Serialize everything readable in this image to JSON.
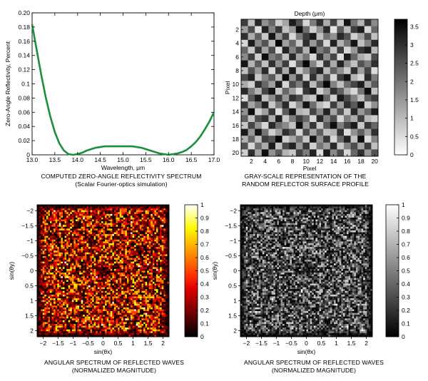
{
  "chart_data": [
    {
      "type": "line",
      "xlabel": "Wavelength, μm",
      "ylabel": "Zero-Angle Reflectivity, Percent",
      "xlim": [
        13.0,
        17.0
      ],
      "ylim": [
        0,
        0.2
      ],
      "xticks": [
        "13.0",
        "13.5",
        "14.0",
        "14.5",
        "15.0",
        "15.5",
        "16.0",
        "16.5",
        "17.0"
      ],
      "yticks": [
        "0",
        "0.02",
        "0.04",
        "0.06",
        "0.08",
        "0.1",
        "0.12",
        "0.14",
        "0.16",
        "0.18",
        "0.20"
      ],
      "grid": false,
      "color": "#1a8f3c",
      "series": [
        {
          "x": [
            13.0,
            13.1,
            13.2,
            13.3,
            13.4,
            13.5,
            13.6,
            13.7,
            13.8,
            13.9,
            14.0,
            14.1,
            14.2,
            14.3,
            14.4,
            14.5,
            14.6,
            14.7,
            14.8,
            14.9,
            15.0,
            15.1,
            15.2,
            15.3,
            15.4,
            15.5,
            15.6,
            15.7,
            15.8,
            15.9,
            16.0,
            16.1,
            16.2,
            16.3,
            16.4,
            16.5,
            16.6,
            16.7,
            16.8,
            16.9,
            17.0
          ],
          "y": [
            0.184,
            0.148,
            0.113,
            0.081,
            0.054,
            0.032,
            0.016,
            0.006,
            0.001,
            0.0,
            0.001,
            0.003,
            0.006,
            0.008,
            0.01,
            0.011,
            0.012,
            0.012,
            0.012,
            0.012,
            0.012,
            0.012,
            0.012,
            0.011,
            0.01,
            0.008,
            0.006,
            0.004,
            0.002,
            0.001,
            0.0,
            0.001,
            0.002,
            0.004,
            0.007,
            0.012,
            0.018,
            0.026,
            0.036,
            0.047,
            0.06
          ]
        }
      ],
      "caption": [
        "COMPUTED ZERO-ANGLE REFLECTIVITY SPECTRUM",
        "(Scalar Fourier-optics simulation)"
      ]
    },
    {
      "type": "heatmap",
      "title": "Depth (μm)",
      "xlabel": "Pixel",
      "ylabel": "Pixel",
      "xticks": [
        "2",
        "4",
        "6",
        "8",
        "10",
        "12",
        "14",
        "16",
        "18",
        "20"
      ],
      "yticks": [
        "2",
        "4",
        "6",
        "8",
        "10",
        "12",
        "14",
        "16",
        "18",
        "20"
      ],
      "rows": 20,
      "cols": 20,
      "colormap": "gray",
      "colorbar_range": [
        0,
        3.7
      ],
      "colorbar_ticks": [
        "0",
        "0.5",
        "1",
        "1.5",
        "2",
        "2.5",
        "3",
        "3.5"
      ],
      "values": [
        [
          2.8,
          0.9,
          3.1,
          1.6,
          2.2,
          0.7,
          1.3,
          3.3,
          2.5,
          0.6,
          1.9,
          3.0,
          1.2,
          2.7,
          0.8,
          3.4,
          2.0,
          1.1,
          2.9,
          1.7
        ],
        [
          1.4,
          2.6,
          0.5,
          3.2,
          1.8,
          2.9,
          0.9,
          1.5,
          3.5,
          2.1,
          0.7,
          1.6,
          3.1,
          0.4,
          2.4,
          1.0,
          2.8,
          3.3,
          0.6,
          2.2
        ],
        [
          3.0,
          1.2,
          2.3,
          0.8,
          3.4,
          1.5,
          2.7,
          0.6,
          1.9,
          2.8,
          3.3,
          0.9,
          2.0,
          1.6,
          3.1,
          2.5,
          0.7,
          1.4,
          2.6,
          0.9
        ],
        [
          0.6,
          3.3,
          1.7,
          2.5,
          1.0,
          3.6,
          1.4,
          2.2,
          0.8,
          3.0,
          1.5,
          2.6,
          0.6,
          3.2,
          1.1,
          2.0,
          3.4,
          0.9,
          1.8,
          3.1
        ],
        [
          2.2,
          0.8,
          2.9,
          1.3,
          2.6,
          0.5,
          3.2,
          1.8,
          2.7,
          1.1,
          3.5,
          1.9,
          2.4,
          0.9,
          2.8,
          0.6,
          1.5,
          2.9,
          3.3,
          1.0
        ],
        [
          1.7,
          2.8,
          0.7,
          3.5,
          1.9,
          2.3,
          0.9,
          3.1,
          1.3,
          2.0,
          0.6,
          3.0,
          1.6,
          2.7,
          0.5,
          3.3,
          2.2,
          1.2,
          0.8,
          2.6
        ],
        [
          3.4,
          1.1,
          2.4,
          0.9,
          3.0,
          1.6,
          2.8,
          0.5,
          2.3,
          3.6,
          1.8,
          0.7,
          2.9,
          1.2,
          3.2,
          1.7,
          0.9,
          2.5,
          1.9,
          3.0
        ],
        [
          0.9,
          2.5,
          1.5,
          3.1,
          0.6,
          2.9,
          1.2,
          3.3,
          0.8,
          1.7,
          2.6,
          3.2,
          1.0,
          2.3,
          1.6,
          0.8,
          3.0,
          1.4,
          2.7,
          0.5
        ],
        [
          2.6,
          3.2,
          0.8,
          1.8,
          2.4,
          1.0,
          3.5,
          1.6,
          2.9,
          0.7,
          3.0,
          1.3,
          2.5,
          0.6,
          2.8,
          3.4,
          1.1,
          0.6,
          3.1,
          1.9
        ],
        [
          1.2,
          0.7,
          3.0,
          2.2,
          1.4,
          3.3,
          0.6,
          2.6,
          1.9,
          3.1,
          1.0,
          2.4,
          3.6,
          1.8,
          0.9,
          2.1,
          2.7,
          3.3,
          1.3,
          2.4
        ],
        [
          3.1,
          1.9,
          1.1,
          2.7,
          3.4,
          0.8,
          2.2,
          1.4,
          0.5,
          2.9,
          3.3,
          0.7,
          1.5,
          3.0,
          2.3,
          1.2,
          0.6,
          2.0,
          3.5,
          0.9
        ],
        [
          0.5,
          2.4,
          3.3,
          0.9,
          1.7,
          2.8,
          1.5,
          3.0,
          2.6,
          1.1,
          0.8,
          3.5,
          2.2,
          0.7,
          3.3,
          2.6,
          1.8,
          0.9,
          2.3,
          2.8
        ],
        [
          2.9,
          1.3,
          2.0,
          3.2,
          0.8,
          1.9,
          3.1,
          0.6,
          1.6,
          3.4,
          2.1,
          1.0,
          0.6,
          2.8,
          1.4,
          3.0,
          2.4,
          3.4,
          0.7,
          1.6
        ],
        [
          1.6,
          3.5,
          0.7,
          1.4,
          2.9,
          0.5,
          2.4,
          3.4,
          1.1,
          0.9,
          2.7,
          1.7,
          3.2,
          1.3,
          2.5,
          0.8,
          3.1,
          1.5,
          2.2,
          3.3
        ],
        [
          2.3,
          0.9,
          2.6,
          3.0,
          1.2,
          3.3,
          0.8,
          1.9,
          2.8,
          2.2,
          0.6,
          3.1,
          1.8,
          2.6,
          0.6,
          1.9,
          1.2,
          2.8,
          1.0,
          0.7
        ],
        [
          0.8,
          2.7,
          1.6,
          0.6,
          3.1,
          2.1,
          1.7,
          0.9,
          3.5,
          1.5,
          2.9,
          0.8,
          2.4,
          3.5,
          1.9,
          2.7,
          3.3,
          0.8,
          2.9,
          2.2
        ],
        [
          3.3,
          1.5,
          3.4,
          2.0,
          0.7,
          1.4,
          3.0,
          2.5,
          0.6,
          2.6,
          1.3,
          2.3,
          0.9,
          1.1,
          3.0,
          0.5,
          1.6,
          2.3,
          1.4,
          3.0
        ],
        [
          1.1,
          2.2,
          0.9,
          2.8,
          2.5,
          3.6,
          0.7,
          1.3,
          2.1,
          0.8,
          3.4,
          1.6,
          2.9,
          0.6,
          2.2,
          3.2,
          0.9,
          3.5,
          0.5,
          1.8
        ],
        [
          2.5,
          0.6,
          2.1,
          1.2,
          3.3,
          0.9,
          2.6,
          3.2,
          1.5,
          2.9,
          0.7,
          2.0,
          1.4,
          3.1,
          0.8,
          1.8,
          2.6,
          1.3,
          2.8,
          0.9
        ],
        [
          0.7,
          3.0,
          1.3,
          3.5,
          1.6,
          2.4,
          1.1,
          0.8,
          2.7,
          1.9,
          3.2,
          0.5,
          3.3,
          1.7,
          2.6,
          0.6,
          2.2,
          3.0,
          1.5,
          2.5
        ]
      ],
      "caption": [
        "GRAY-SCALE REPRESENTATION OF THE",
        "RANDOM REFLECTOR SURFACE PROFILE"
      ]
    },
    {
      "type": "heatmap",
      "xlabel": "sin(θx)",
      "ylabel": "sin(θy)",
      "xticks": [
        "−2",
        "−1.5",
        "−1",
        "−0.5",
        "0",
        "0.5",
        "1",
        "1.5",
        "2"
      ],
      "yticks": [
        "−2",
        "−1.5",
        "−1",
        "−0.5",
        "0",
        "0.5",
        "1",
        "1.5",
        "2"
      ],
      "xlim": [
        -2.2,
        2.2
      ],
      "ylim": [
        -2.2,
        2.2
      ],
      "colormap": "hot",
      "colorbar_range": [
        0,
        1
      ],
      "colorbar_ticks": [
        "0",
        "0.1",
        "0.2",
        "0.3",
        "0.4",
        "0.5",
        "0.6",
        "0.7",
        "0.8",
        "0.9",
        "1"
      ],
      "caption": [
        "ANGULAR SPECTRUM OF REFLECTED WAVES",
        "(NORMALIZED MAGNITUDE)"
      ]
    },
    {
      "type": "heatmap",
      "xlabel": "sin(θx)",
      "ylabel": "sin(θy)",
      "xticks": [
        "−2",
        "−1.5",
        "−1",
        "−0.5",
        "0",
        "0.5",
        "1",
        "1.5",
        "2"
      ],
      "yticks": [
        "−2",
        "−1.5",
        "−1",
        "−0.5",
        "0",
        "0.5",
        "1",
        "1.5",
        "2"
      ],
      "xlim": [
        -2.2,
        2.2
      ],
      "ylim": [
        -2.2,
        2.2
      ],
      "colormap": "gray",
      "colorbar_range": [
        0,
        1
      ],
      "colorbar_ticks": [
        "0",
        "0.1",
        "0.2",
        "0.3",
        "0.4",
        "0.5",
        "0.6",
        "0.7",
        "0.8",
        "0.9",
        "1"
      ],
      "caption": [
        "ANGULAR SPECTRUM OF REFLECTED WAVES",
        "(NORMALIZED MAGNITUDE)"
      ]
    }
  ]
}
